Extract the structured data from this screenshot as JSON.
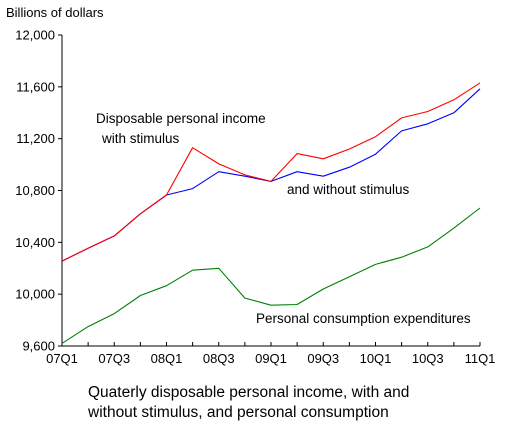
{
  "chart_data": {
    "type": "line",
    "ylabel": "Billions of dollars",
    "ylim": [
      9600,
      12000
    ],
    "yticks": [
      9600,
      10000,
      10400,
      10800,
      11200,
      11600,
      12000
    ],
    "ytick_labels": [
      "9,600",
      "10,000",
      "10,400",
      "10,800",
      "11,200",
      "11,600",
      "12,000"
    ],
    "x": [
      "07Q1",
      "07Q2",
      "07Q3",
      "07Q4",
      "08Q1",
      "08Q2",
      "08Q3",
      "08Q4",
      "09Q1",
      "09Q2",
      "09Q3",
      "09Q4",
      "10Q1",
      "10Q2",
      "10Q3",
      "10Q4",
      "11Q1"
    ],
    "xtick_labels": [
      "07Q1",
      "07Q3",
      "08Q1",
      "08Q3",
      "09Q1",
      "09Q3",
      "10Q1",
      "10Q3",
      "11Q1"
    ],
    "series": [
      {
        "key": "with_stimulus",
        "color": "#ff0000",
        "values": [
          10255,
          10355,
          10450,
          10620,
          10765,
          11130,
          11005,
          10920,
          10870,
          11085,
          11045,
          11120,
          11215,
          11360,
          11410,
          11500,
          11630
        ]
      },
      {
        "key": "without_stimulus",
        "color": "#0000ff",
        "values": [
          10255,
          10355,
          10450,
          10620,
          10765,
          10815,
          10945,
          10910,
          10870,
          10945,
          10910,
          10980,
          11080,
          11260,
          11315,
          11400,
          11585
        ]
      },
      {
        "key": "consumption",
        "color": "#008000",
        "values": [
          9620,
          9750,
          9850,
          9990,
          10065,
          10185,
          10200,
          9970,
          9915,
          9920,
          10040,
          10135,
          10230,
          10285,
          10365,
          10510,
          10665
        ]
      }
    ],
    "annotations": {
      "with_stimulus_line1": "Disposable personal income",
      "with_stimulus_line2": "with stimulus",
      "without_stimulus": "and without stimulus",
      "consumption": "Personal consumption expenditures"
    }
  },
  "caption": {
    "line1": "Quaterly disposable personal income, with and",
    "line2": "without stimulus, and personal consumption"
  }
}
